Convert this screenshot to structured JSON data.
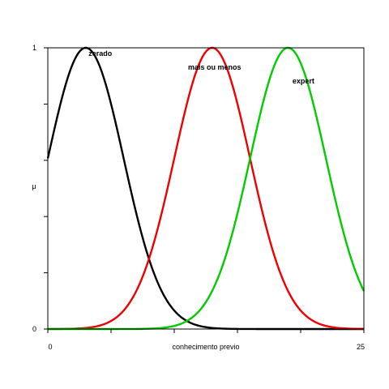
{
  "chart_data": {
    "type": "line",
    "title": "",
    "xlabel": "conhecimento previo",
    "ylabel": "μ",
    "xlim": [
      0,
      25
    ],
    "ylim": [
      0,
      1
    ],
    "x_tick_labels": [
      "0",
      "25"
    ],
    "y_tick_labels": [
      "0",
      "1"
    ],
    "grid": false,
    "legend": "none",
    "series": [
      {
        "name": "zerado",
        "color": "#000000",
        "shape": "gaussian",
        "center": 3,
        "sigma": 3,
        "x": [
          0,
          1,
          2,
          3,
          4,
          5,
          6,
          7,
          8,
          9,
          10,
          11,
          12,
          13,
          14,
          15,
          16,
          17,
          18,
          19,
          20,
          21,
          22,
          23,
          24,
          25
        ],
        "values": [
          0.61,
          0.8,
          0.95,
          1.0,
          0.95,
          0.8,
          0.61,
          0.41,
          0.25,
          0.14,
          0.07,
          0.03,
          0.01,
          0.0,
          0.0,
          0.0,
          0.0,
          0.0,
          0.0,
          0.0,
          0.0,
          0.0,
          0.0,
          0.0,
          0.0,
          0.0
        ]
      },
      {
        "name": "mais ou menos",
        "color": "#ee0000",
        "shape": "gaussian",
        "center": 13,
        "sigma": 3,
        "x": [
          0,
          1,
          2,
          3,
          4,
          5,
          6,
          7,
          8,
          9,
          10,
          11,
          12,
          13,
          14,
          15,
          16,
          17,
          18,
          19,
          20,
          21,
          22,
          23,
          24,
          25
        ],
        "values": [
          0.0,
          0.0,
          0.0,
          0.0,
          0.01,
          0.03,
          0.07,
          0.14,
          0.25,
          0.41,
          0.61,
          0.8,
          0.95,
          1.0,
          0.95,
          0.8,
          0.61,
          0.41,
          0.25,
          0.14,
          0.07,
          0.03,
          0.01,
          0.0,
          0.0,
          0.0
        ]
      },
      {
        "name": "expert",
        "color": "#00cc00",
        "shape": "gaussian",
        "center": 19,
        "sigma": 3,
        "x": [
          0,
          1,
          2,
          3,
          4,
          5,
          6,
          7,
          8,
          9,
          10,
          11,
          12,
          13,
          14,
          15,
          16,
          17,
          18,
          19,
          20,
          21,
          22,
          23,
          24,
          25
        ],
        "values": [
          0.0,
          0.0,
          0.0,
          0.0,
          0.0,
          0.0,
          0.0,
          0.0,
          0.0,
          0.0,
          0.01,
          0.03,
          0.07,
          0.14,
          0.25,
          0.41,
          0.61,
          0.8,
          0.95,
          1.0,
          0.95,
          0.8,
          0.61,
          0.41,
          0.25,
          0.14
        ]
      }
    ]
  }
}
